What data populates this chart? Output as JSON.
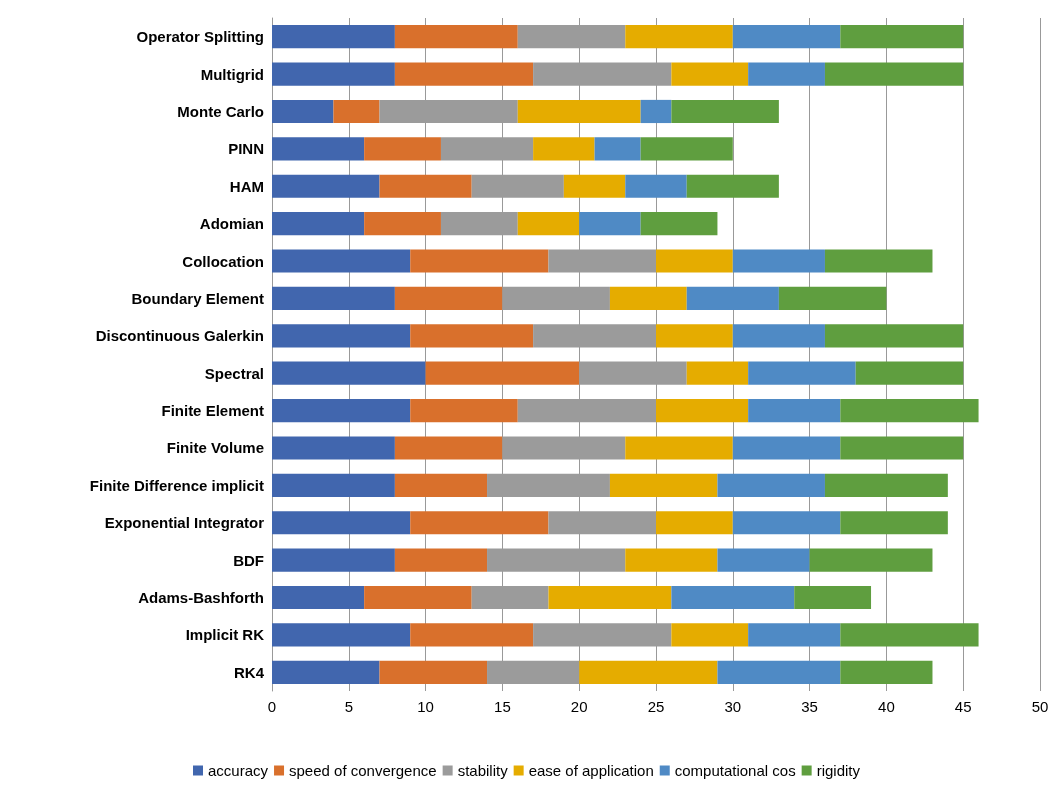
{
  "chart_data": {
    "type": "bar",
    "orientation": "horizontal",
    "stacked": true,
    "categories": [
      "Operator Splitting",
      "Multigrid",
      "Monte Carlo",
      "PINN",
      "HAM",
      "Adomian",
      "Collocation",
      "Boundary Element",
      "Discontinuous Galerkin",
      "Spectral",
      "Finite Element",
      "Finite Volume",
      "Finite Difference implicit",
      "Exponential Integrator",
      "BDF",
      "Adams-Bashforth",
      "Implicit RK",
      "RK4"
    ],
    "series": [
      {
        "name": "accuracy",
        "color": "#4166ae",
        "values": [
          8,
          8,
          4,
          6,
          7,
          6,
          9,
          8,
          9,
          10,
          9,
          8,
          8,
          9,
          8,
          6,
          9,
          7
        ]
      },
      {
        "name": "speed of convergence",
        "color": "#d9702c",
        "values": [
          8,
          9,
          3,
          5,
          6,
          5,
          9,
          7,
          8,
          10,
          7,
          7,
          6,
          9,
          6,
          7,
          8,
          7
        ]
      },
      {
        "name": "stability",
        "color": "#9b9b9b",
        "values": [
          7,
          9,
          9,
          6,
          6,
          5,
          7,
          7,
          8,
          7,
          9,
          8,
          8,
          7,
          9,
          5,
          9,
          6
        ]
      },
      {
        "name": "ease of application",
        "color": "#e5ac00",
        "values": [
          7,
          5,
          8,
          4,
          4,
          4,
          5,
          5,
          5,
          4,
          6,
          7,
          7,
          5,
          6,
          8,
          5,
          9
        ]
      },
      {
        "name": "computational cos",
        "color": "#4f8ac5",
        "values": [
          7,
          5,
          2,
          3,
          4,
          4,
          6,
          6,
          6,
          7,
          6,
          7,
          7,
          7,
          6,
          8,
          6,
          8
        ]
      },
      {
        "name": "rigidity",
        "color": "#5f9e3f",
        "values": [
          8,
          9,
          7,
          6,
          6,
          5,
          7,
          7,
          9,
          7,
          9,
          8,
          8,
          7,
          8,
          5,
          9,
          6
        ]
      }
    ],
    "xlim": [
      0,
      50
    ],
    "xticks": [
      0,
      5,
      10,
      15,
      20,
      25,
      30,
      35,
      40,
      45,
      50
    ],
    "grid": "x",
    "legend": "bottom"
  }
}
